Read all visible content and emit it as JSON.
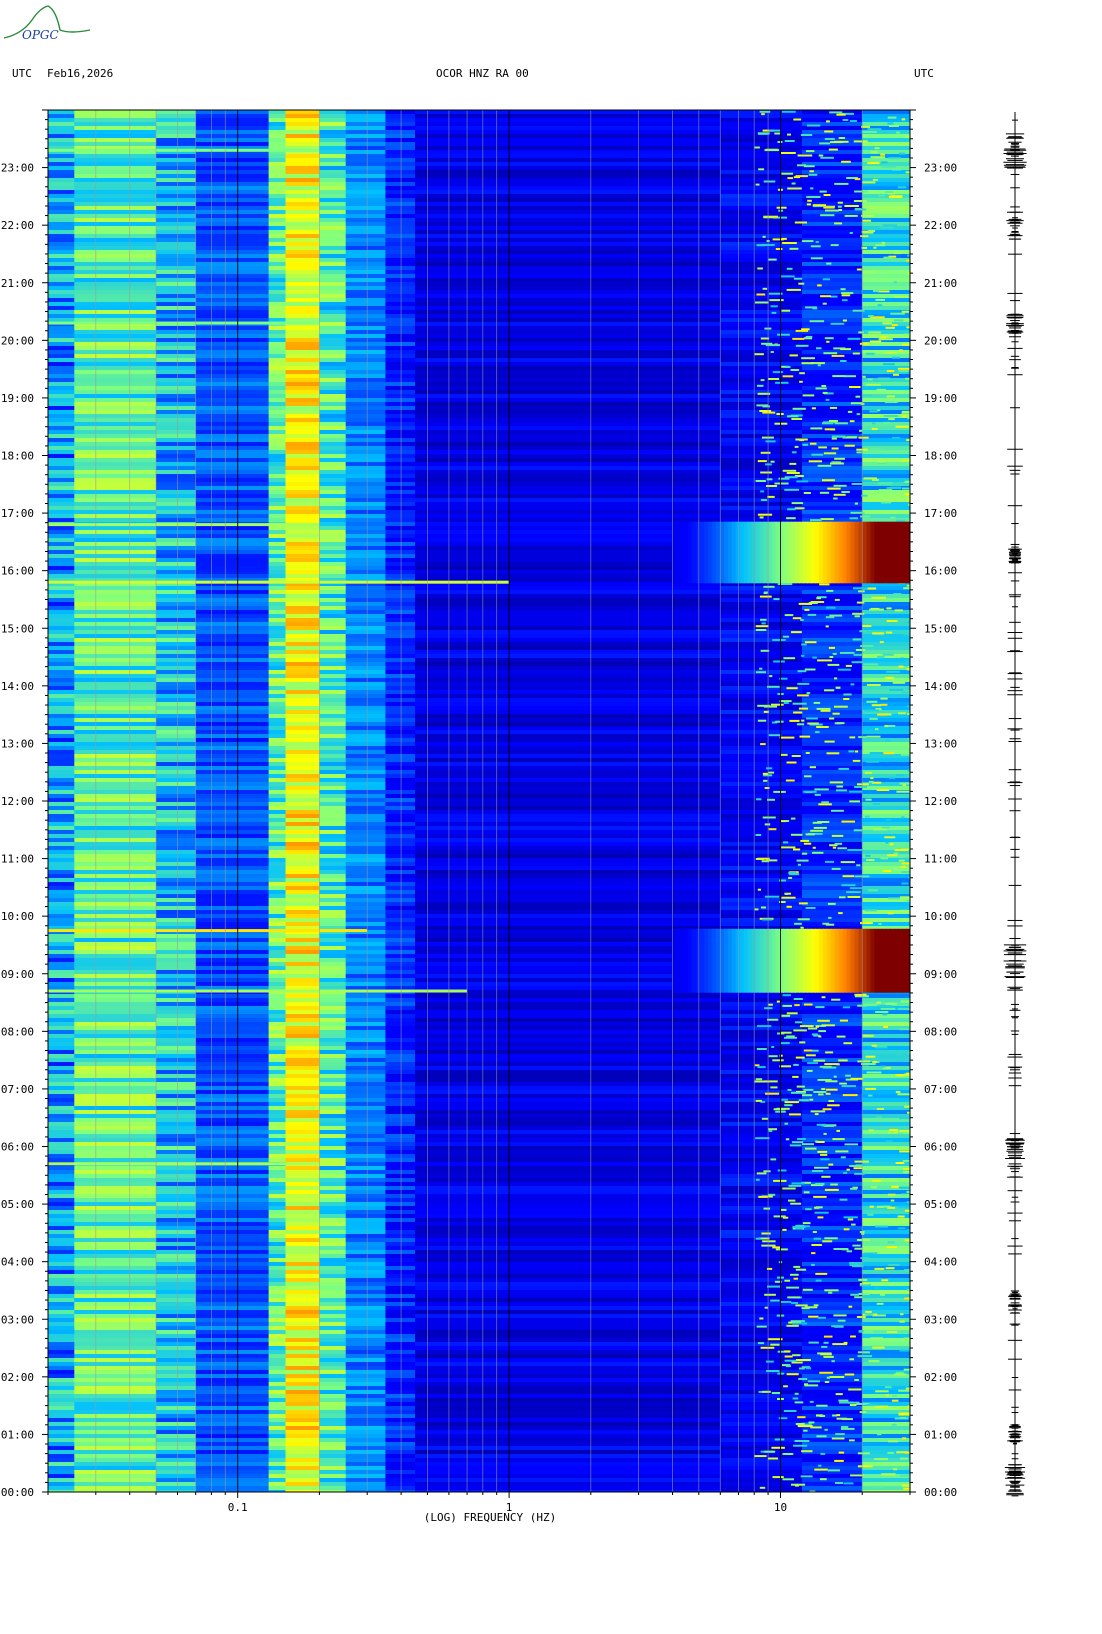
{
  "header": {
    "left_tz": "UTC",
    "date": "Feb16,2026",
    "station": "OCOR HNZ RA 00",
    "right_tz": "UTC"
  },
  "logo": {
    "text": "OPGC"
  },
  "chart_data": {
    "type": "heatmap",
    "title": "OCOR HNZ RA 00",
    "xlabel": "(LOG) FREQUENCY (HZ)",
    "x_scale": "log",
    "xlim": [
      0.02,
      30
    ],
    "x_ticks": [
      {
        "value": 0.1,
        "label": "0.1"
      },
      {
        "value": 1,
        "label": "1"
      },
      {
        "value": 10,
        "label": "10"
      }
    ],
    "ylabel": "UTC",
    "ylim_hours": [
      0,
      24
    ],
    "y_ticks": [
      {
        "value": 0,
        "label": "00:00"
      },
      {
        "value": 1,
        "label": "01:00"
      },
      {
        "value": 2,
        "label": "02:00"
      },
      {
        "value": 3,
        "label": "03:00"
      },
      {
        "value": 4,
        "label": "04:00"
      },
      {
        "value": 5,
        "label": "05:00"
      },
      {
        "value": 6,
        "label": "06:00"
      },
      {
        "value": 7,
        "label": "07:00"
      },
      {
        "value": 8,
        "label": "08:00"
      },
      {
        "value": 9,
        "label": "09:00"
      },
      {
        "value": 10,
        "label": "10:00"
      },
      {
        "value": 11,
        "label": "11:00"
      },
      {
        "value": 12,
        "label": "12:00"
      },
      {
        "value": 13,
        "label": "13:00"
      },
      {
        "value": 14,
        "label": "14:00"
      },
      {
        "value": 15,
        "label": "15:00"
      },
      {
        "value": 16,
        "label": "16:00"
      },
      {
        "value": 17,
        "label": "17:00"
      },
      {
        "value": 18,
        "label": "18:00"
      },
      {
        "value": 19,
        "label": "19:00"
      },
      {
        "value": 20,
        "label": "20:00"
      },
      {
        "value": 21,
        "label": "21:00"
      },
      {
        "value": 22,
        "label": "22:00"
      },
      {
        "value": 23,
        "label": "23:00"
      }
    ],
    "bands": [
      {
        "f_min": 0.02,
        "f_max": 0.025,
        "level": 0.32
      },
      {
        "f_min": 0.025,
        "f_max": 0.05,
        "level": 0.46
      },
      {
        "f_min": 0.05,
        "f_max": 0.07,
        "level": 0.36
      },
      {
        "f_min": 0.07,
        "f_max": 0.13,
        "level": 0.24
      },
      {
        "f_min": 0.13,
        "f_max": 0.15,
        "level": 0.46
      },
      {
        "f_min": 0.15,
        "f_max": 0.2,
        "level": 0.66
      },
      {
        "f_min": 0.2,
        "f_max": 0.25,
        "level": 0.44
      },
      {
        "f_min": 0.25,
        "f_max": 0.35,
        "level": 0.28
      },
      {
        "f_min": 0.35,
        "f_max": 0.45,
        "level": 0.2
      },
      {
        "f_min": 0.45,
        "f_max": 6,
        "level": 0.13
      },
      {
        "f_min": 6,
        "f_max": 12,
        "level": 0.15
      },
      {
        "f_min": 12,
        "f_max": 20,
        "level": 0.2
      },
      {
        "f_min": 20,
        "f_max": 30,
        "level": 0.4
      }
    ],
    "events": [
      {
        "t_start": 8.67,
        "t_end": 9.78,
        "f_start": 4,
        "level_max": 1.0
      },
      {
        "t_start": 15.78,
        "t_end": 16.85,
        "f_start": 4,
        "level_max": 1.0
      }
    ],
    "lines": [
      {
        "t": 15.8,
        "f_min": 0.02,
        "f_max": 1.0,
        "level": 0.6
      },
      {
        "t": 8.7,
        "f_min": 0.02,
        "f_max": 0.7,
        "level": 0.55
      },
      {
        "t": 9.75,
        "f_min": 0.02,
        "f_max": 0.3,
        "level": 0.7
      },
      {
        "t": 16.8,
        "f_min": 0.02,
        "f_max": 0.2,
        "level": 0.55
      },
      {
        "t": 5.7,
        "f_min": 0.02,
        "f_max": 0.2,
        "level": 0.55
      },
      {
        "t": 20.3,
        "f_min": 0.02,
        "f_max": 0.2,
        "level": 0.5
      },
      {
        "t": 23.3,
        "f_min": 0.02,
        "f_max": 0.2,
        "level": 0.5
      }
    ],
    "colormap": [
      "#00007f",
      "#0000ff",
      "#00bfff",
      "#7fff7f",
      "#ffff00",
      "#ff7f00",
      "#7f0000"
    ],
    "seismogram_bursts": [
      {
        "t": 23.3,
        "amp": 0.9
      },
      {
        "t": 22.0,
        "amp": 0.7
      },
      {
        "t": 20.3,
        "amp": 0.7
      },
      {
        "t": 16.3,
        "amp": 0.5
      },
      {
        "t": 9.2,
        "amp": 0.9
      },
      {
        "t": 5.9,
        "amp": 0.8
      },
      {
        "t": 3.3,
        "amp": 0.6
      },
      {
        "t": 1.0,
        "amp": 0.5
      },
      {
        "t": 0.2,
        "amp": 0.8
      }
    ]
  }
}
